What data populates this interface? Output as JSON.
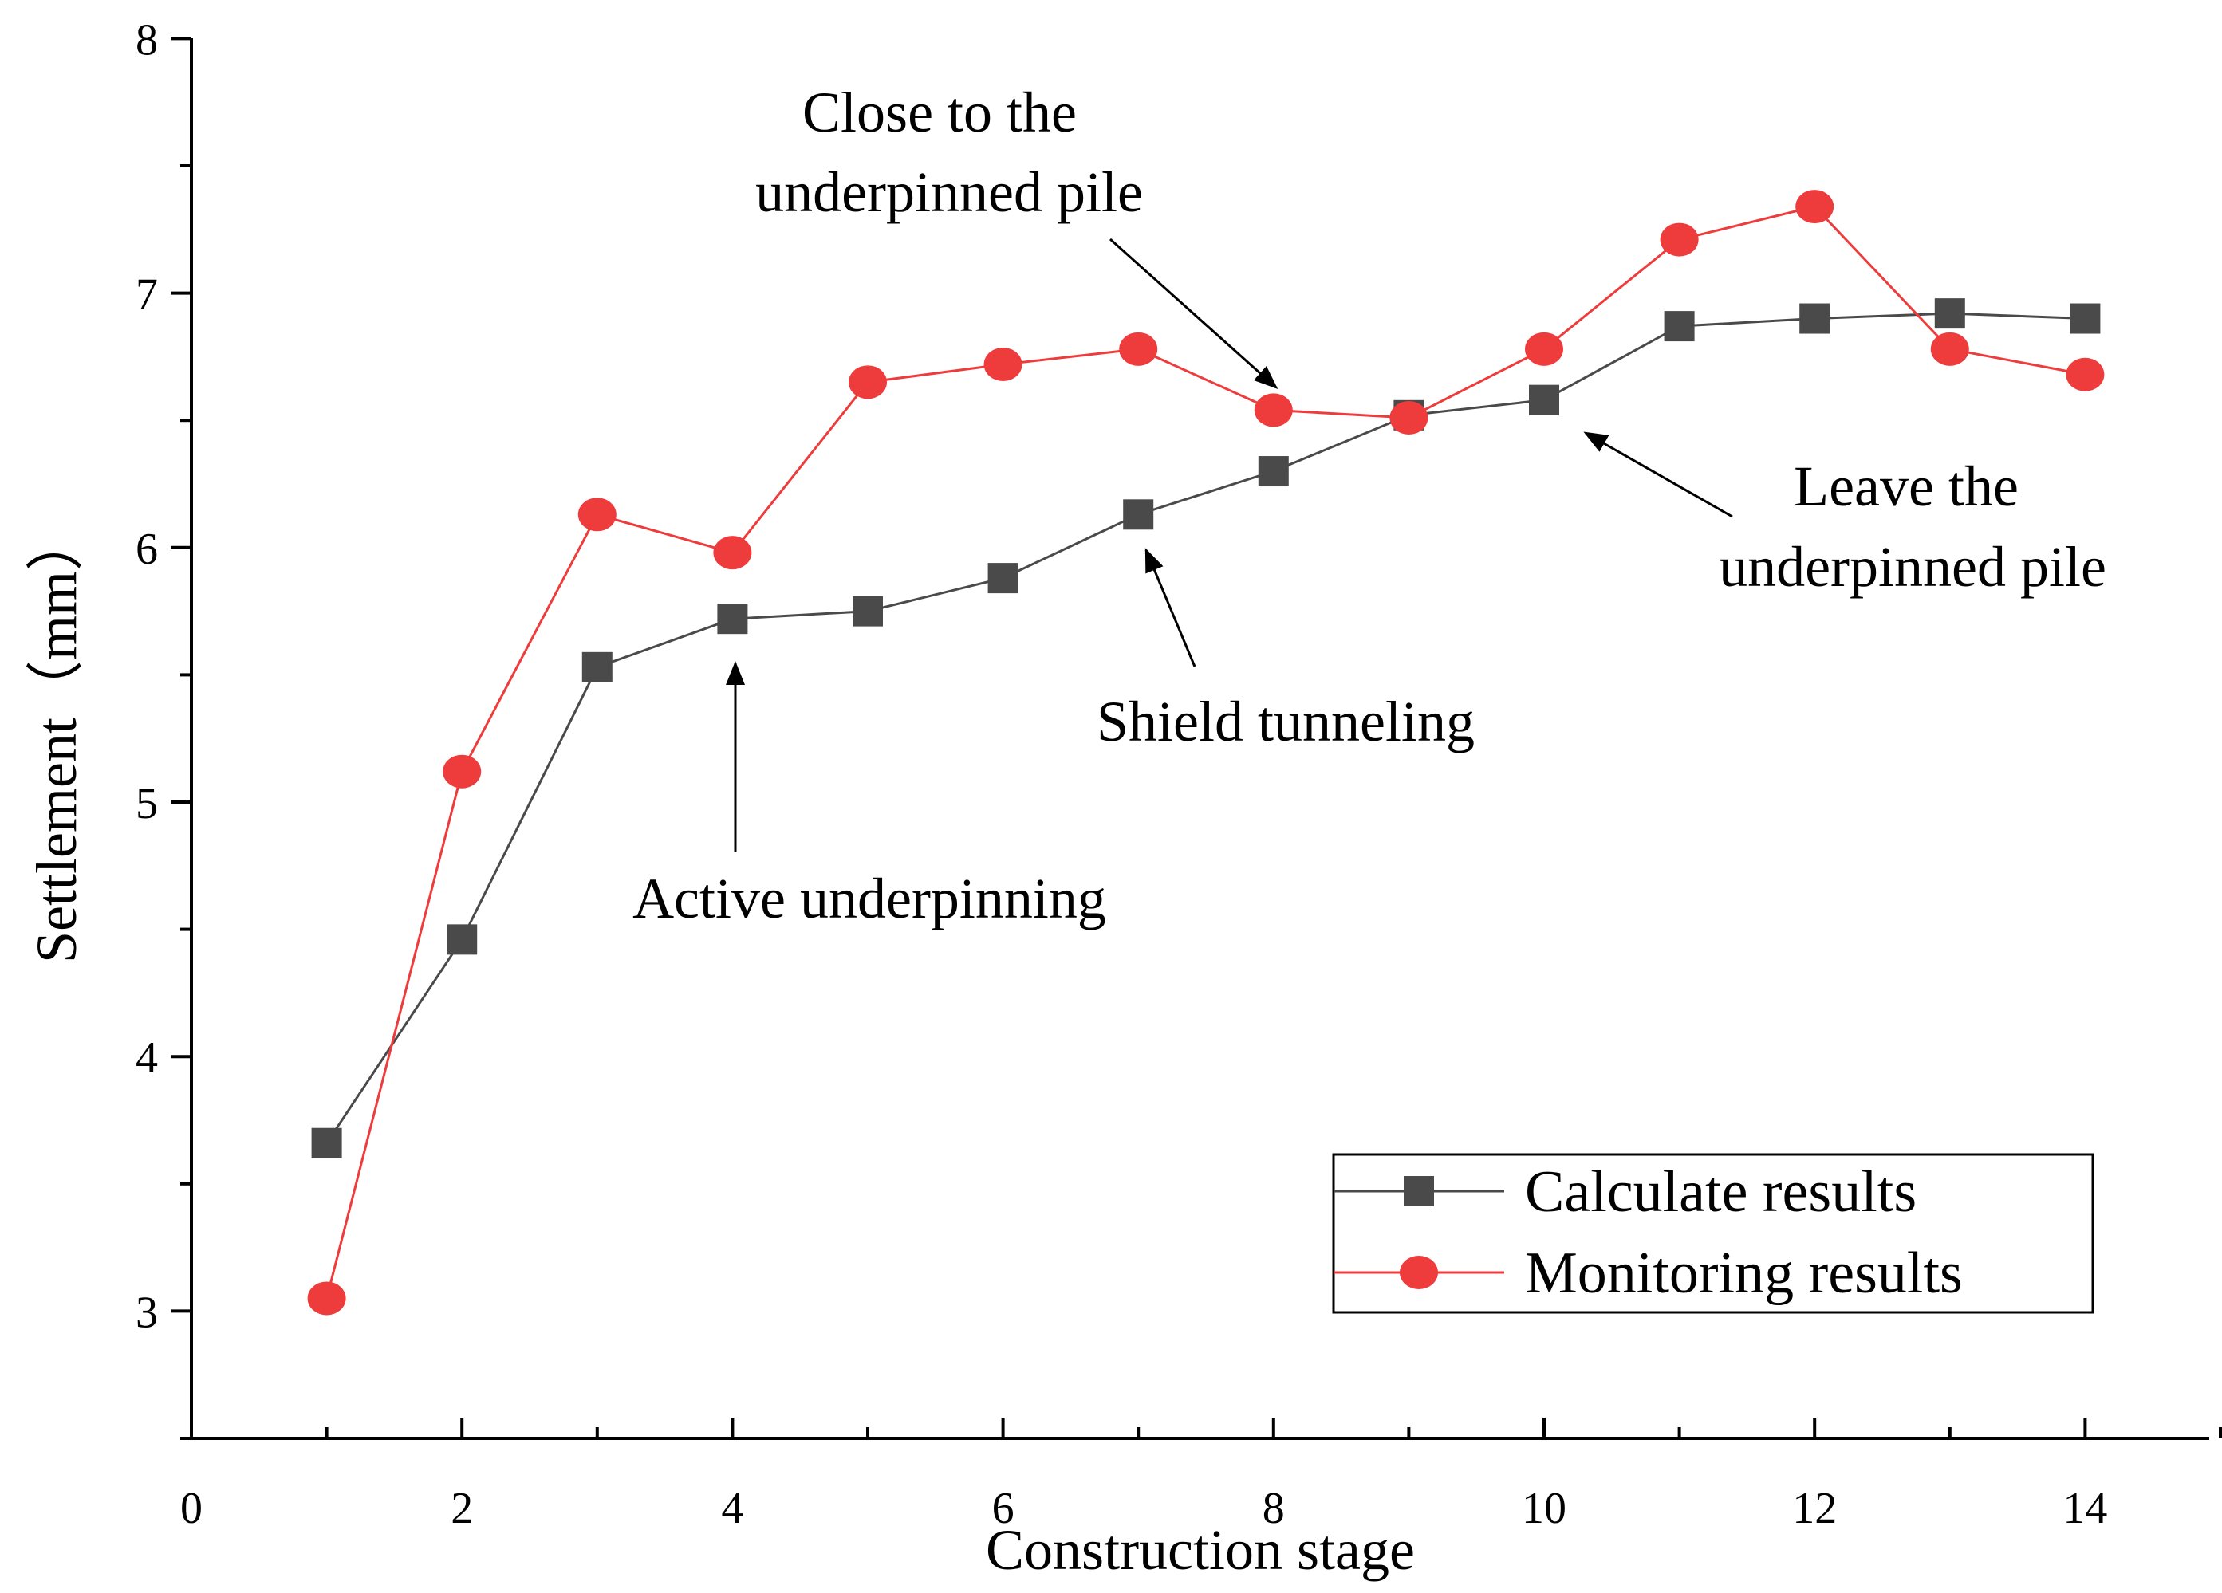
{
  "chart_data": {
    "type": "line",
    "title": "",
    "xlabel": "Construction stage",
    "ylabel": "Settlement（mm）",
    "xlim": [
      0,
      15
    ],
    "ylim": [
      2.5,
      8
    ],
    "xticks": [
      0,
      2,
      4,
      6,
      8,
      10,
      12,
      14
    ],
    "xtick_labels": [
      "0",
      "2",
      "4",
      "6",
      "8",
      "10",
      "12",
      "14"
    ],
    "yticks": [
      3,
      4,
      5,
      6,
      7,
      8
    ],
    "ytick_labels": [
      "3",
      "4",
      "5",
      "6",
      "7",
      "8"
    ],
    "grid": false,
    "legend_position": "bottom-right",
    "x": [
      1,
      2,
      3,
      4,
      5,
      6,
      7,
      8,
      9,
      10,
      11,
      12,
      13,
      14
    ],
    "series": [
      {
        "name": "Calculate results",
        "color": "#4a4a4a",
        "marker": "square",
        "values": [
          3.66,
          4.46,
          5.53,
          5.72,
          5.75,
          5.88,
          6.13,
          6.3,
          6.52,
          6.58,
          6.87,
          6.9,
          6.92,
          6.9
        ]
      },
      {
        "name": "Monitoring results",
        "color": "#ee3b3b",
        "marker": "circle",
        "values": [
          3.05,
          5.12,
          6.13,
          5.98,
          6.65,
          6.72,
          6.78,
          6.54,
          6.51,
          6.78,
          7.21,
          7.34,
          6.78,
          6.68
        ]
      }
    ],
    "annotations": [
      {
        "id": "close",
        "lines": [
          "Close to the",
          "underpinned pile"
        ],
        "points_to": {
          "x": 8,
          "y": 6.54
        }
      },
      {
        "id": "leave",
        "lines": [
          "Leave the",
          "underpinned pile"
        ],
        "points_to": {
          "x": 10,
          "y": 6.58
        }
      },
      {
        "id": "shield",
        "lines": [
          "Shield tunneling"
        ],
        "points_to": {
          "x": 7,
          "y": 6.13
        }
      },
      {
        "id": "active",
        "lines": [
          "Active underpinning"
        ],
        "points_to": {
          "x": 4,
          "y": 5.72
        }
      }
    ]
  }
}
